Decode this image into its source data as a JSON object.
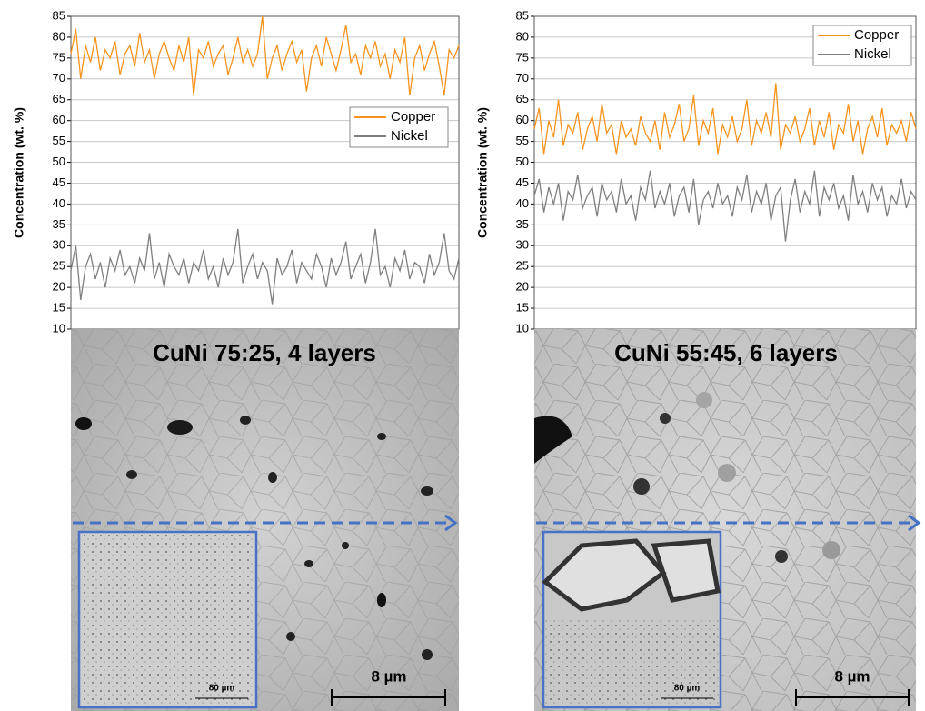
{
  "chart_data": [
    {
      "type": "line",
      "y_label": "Concentration (wt. %)",
      "ylim": [
        10,
        85
      ],
      "yticks": [
        10,
        15,
        20,
        25,
        30,
        35,
        40,
        45,
        50,
        55,
        60,
        65,
        70,
        75,
        80,
        85
      ],
      "grid": true,
      "legend_position": "center right",
      "series": [
        {
          "name": "Copper",
          "color": "#f7941d",
          "values": [
            76,
            82,
            70,
            78,
            74,
            80,
            72,
            77,
            75,
            79,
            71,
            76,
            78,
            73,
            81,
            74,
            77,
            70,
            76,
            79,
            75,
            72,
            78,
            74,
            80,
            66,
            77,
            75,
            79,
            73,
            76,
            78,
            71,
            75,
            80,
            74,
            77,
            73,
            76,
            85,
            70,
            75,
            78,
            72,
            76,
            79,
            74,
            77,
            67,
            75,
            78,
            73,
            80,
            76,
            72,
            77,
            83,
            74,
            76,
            71,
            78,
            75,
            79,
            73,
            76,
            70,
            77,
            74,
            80,
            66,
            75,
            78,
            72,
            76,
            79,
            73,
            66,
            77,
            75,
            78
          ]
        },
        {
          "name": "Nickel",
          "color": "#7f7f7f",
          "values": [
            24,
            30,
            17,
            25,
            28,
            22,
            26,
            20,
            27,
            24,
            29,
            23,
            25,
            21,
            27,
            24,
            33,
            22,
            26,
            20,
            28,
            25,
            23,
            27,
            21,
            26,
            24,
            29,
            22,
            25,
            20,
            27,
            23,
            26,
            34,
            21,
            25,
            28,
            22,
            26,
            24,
            16,
            27,
            23,
            25,
            29,
            21,
            26,
            24,
            22,
            28,
            25,
            20,
            27,
            23,
            26,
            31,
            22,
            25,
            28,
            21,
            26,
            34,
            23,
            25,
            20,
            27,
            24,
            29,
            22,
            26,
            25,
            21,
            28,
            23,
            26,
            33,
            24,
            22,
            27
          ]
        }
      ]
    },
    {
      "type": "line",
      "y_label": "Concentration (wt. %)",
      "ylim": [
        10,
        85
      ],
      "yticks": [
        10,
        15,
        20,
        25,
        30,
        35,
        40,
        45,
        50,
        55,
        60,
        65,
        70,
        75,
        80,
        85
      ],
      "grid": true,
      "legend_position": "upper right",
      "series": [
        {
          "name": "Copper",
          "color": "#f7941d",
          "values": [
            58,
            63,
            52,
            60,
            56,
            65,
            54,
            59,
            57,
            62,
            53,
            58,
            61,
            55,
            64,
            57,
            59,
            52,
            60,
            56,
            58,
            54,
            61,
            57,
            55,
            60,
            53,
            62,
            56,
            59,
            64,
            55,
            58,
            66,
            54,
            60,
            57,
            63,
            52,
            59,
            56,
            61,
            55,
            58,
            65,
            54,
            60,
            57,
            62,
            56,
            69,
            53,
            59,
            57,
            61,
            55,
            58,
            63,
            54,
            60,
            56,
            62,
            53,
            59,
            57,
            64,
            55,
            60,
            52,
            58,
            61,
            56,
            63,
            54,
            59,
            57,
            60,
            55,
            62,
            58
          ]
        },
        {
          "name": "Nickel",
          "color": "#7f7f7f",
          "values": [
            42,
            46,
            38,
            44,
            40,
            45,
            36,
            43,
            41,
            47,
            39,
            42,
            44,
            37,
            45,
            41,
            43,
            38,
            46,
            40,
            42,
            36,
            44,
            41,
            48,
            39,
            43,
            40,
            45,
            37,
            42,
            44,
            38,
            46,
            35,
            41,
            43,
            39,
            45,
            40,
            42,
            37,
            44,
            41,
            47,
            38,
            43,
            40,
            45,
            36,
            42,
            44,
            31,
            41,
            46,
            38,
            43,
            40,
            48,
            37,
            44,
            41,
            45,
            39,
            42,
            36,
            47,
            40,
            43,
            38,
            45,
            41,
            44,
            37,
            42,
            40,
            46,
            39,
            43,
            41
          ]
        }
      ]
    }
  ],
  "images": [
    {
      "title": "CuNi 75:25, 4 layers",
      "scale_bar": "8 µm",
      "inset_scale_bar": "80 µm"
    },
    {
      "title": "CuNi 55:45, 6 layers",
      "scale_bar": "8 µm",
      "inset_scale_bar": "80 µm"
    }
  ]
}
